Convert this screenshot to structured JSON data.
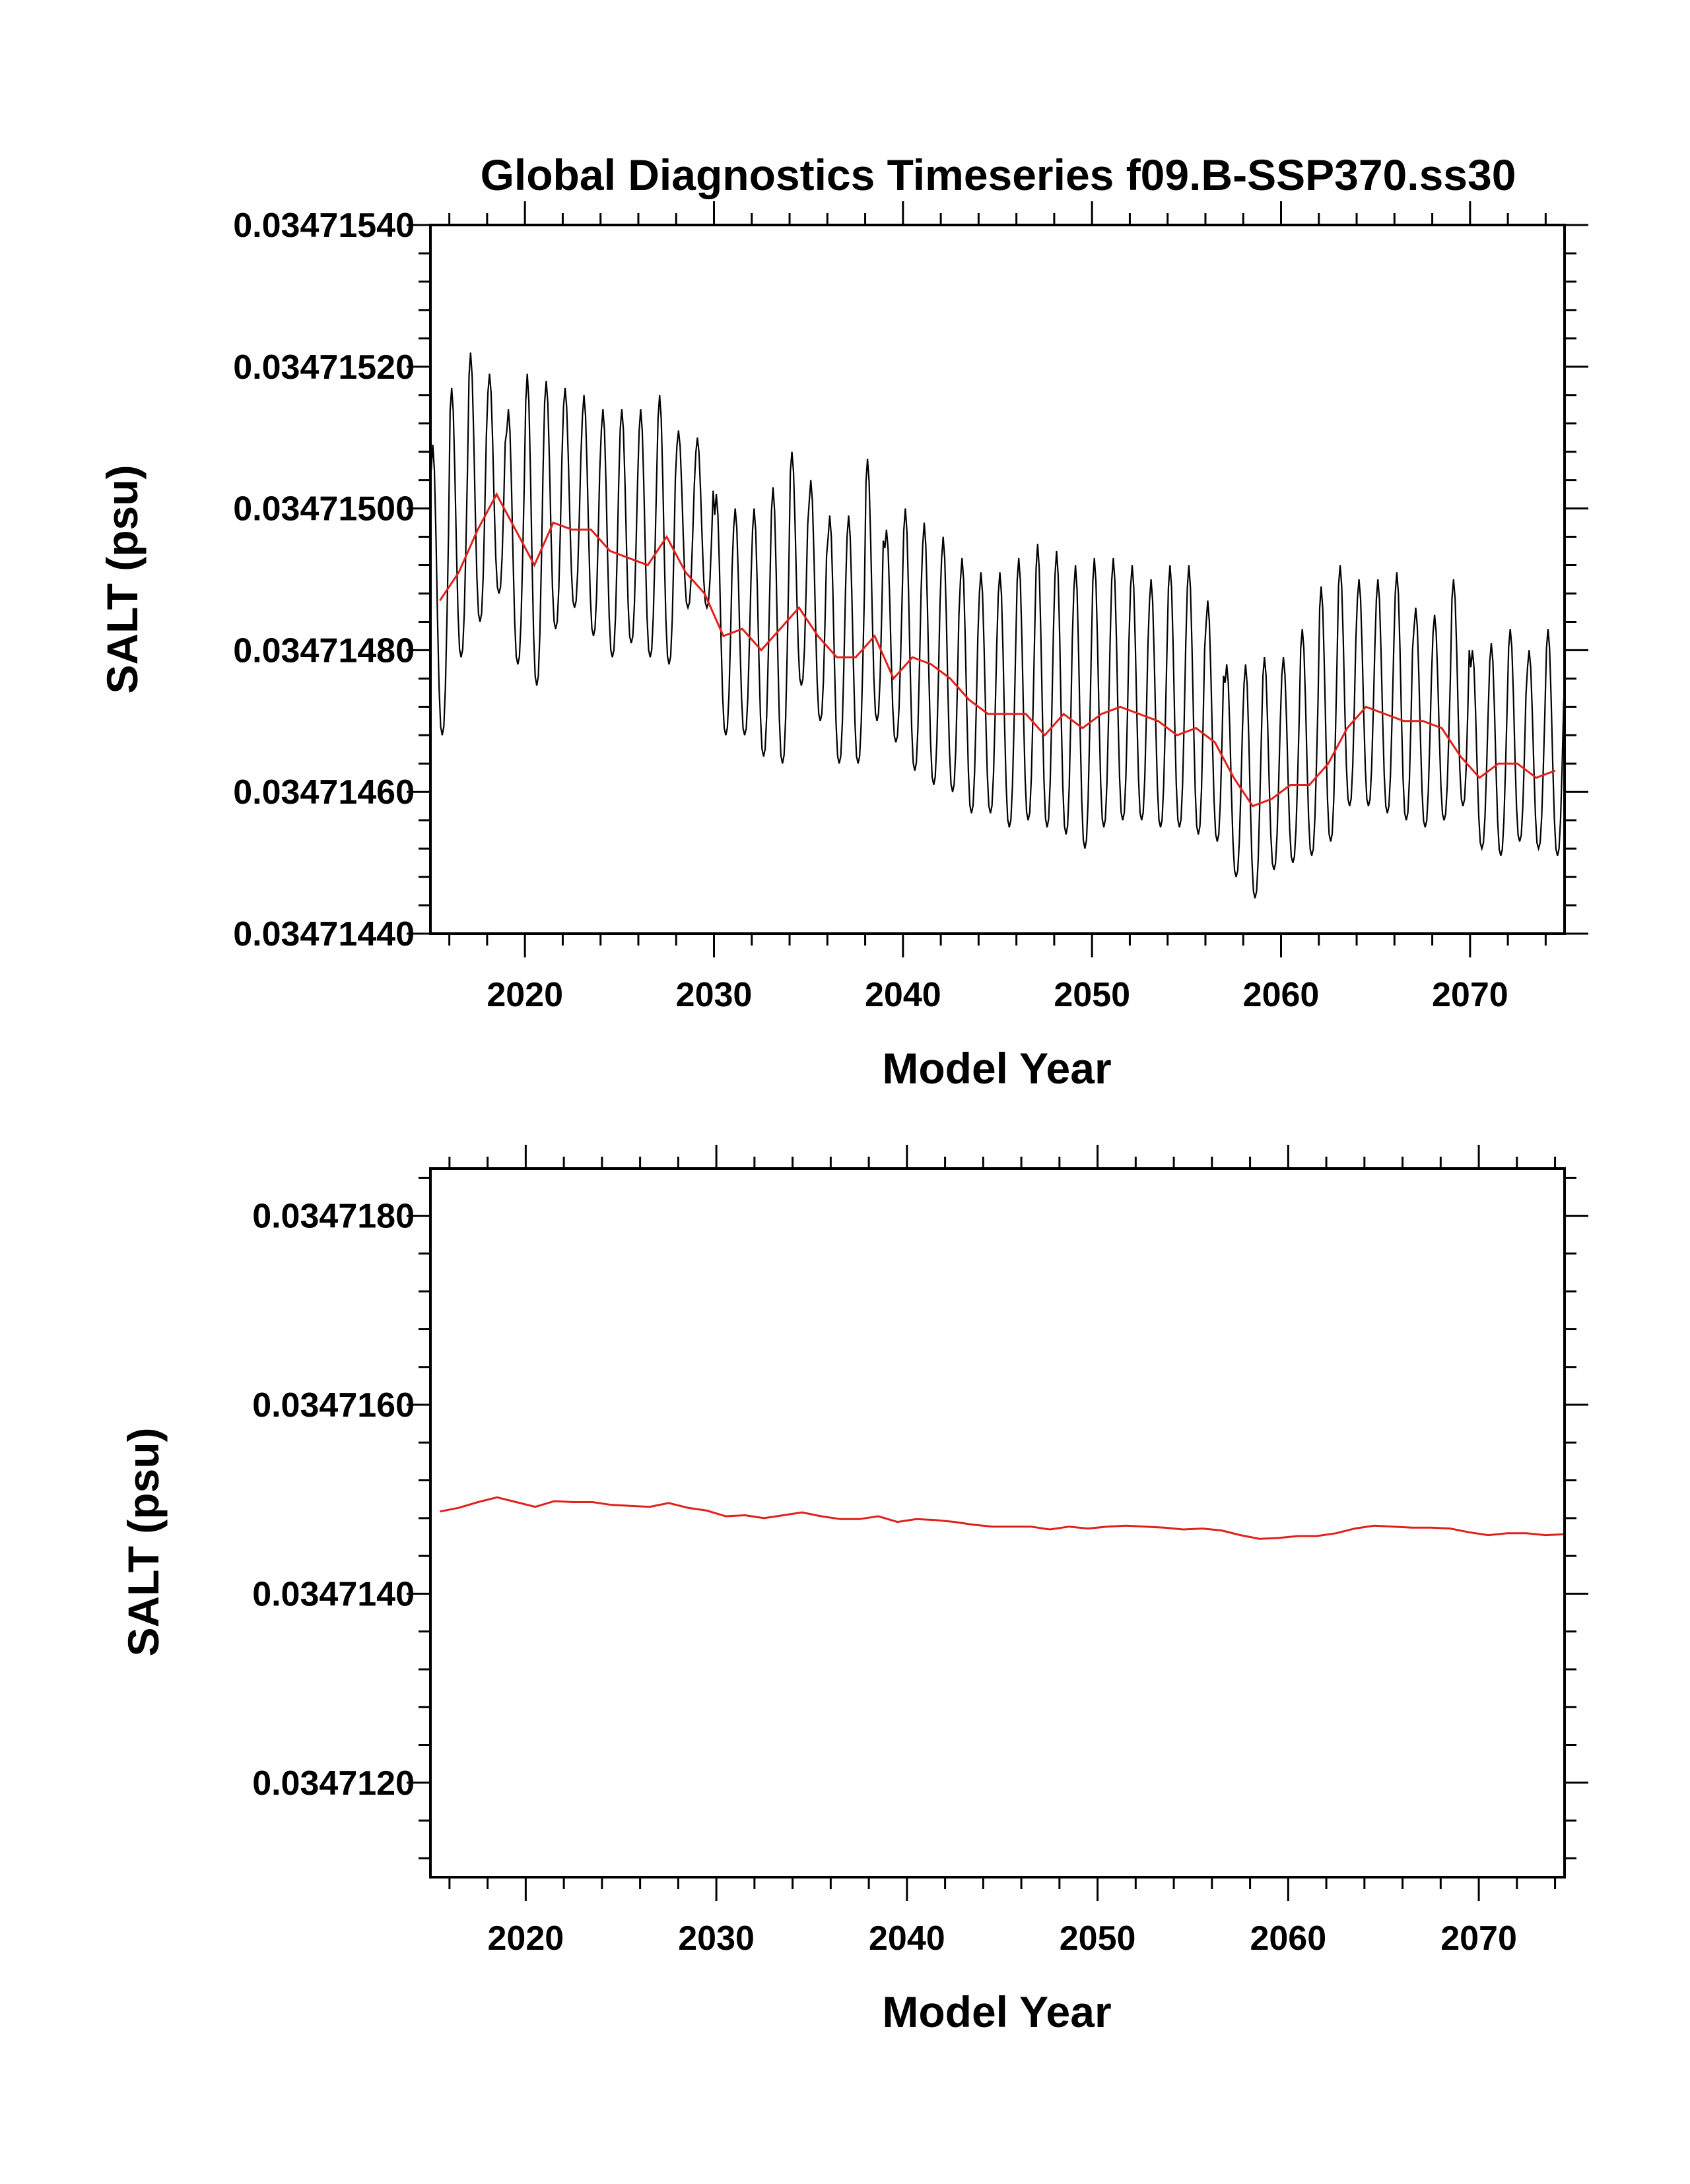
{
  "figure": {
    "title": "Global Diagnostics Timeseries f09.B-SSP370.ss30"
  },
  "colors": {
    "monthly": "#000000",
    "annual": "#e0201b",
    "axes": "#000000",
    "background": "#ffffff"
  },
  "chart_data": [
    {
      "type": "line",
      "xlabel": "Model Year",
      "ylabel": "SALT (psu)",
      "xlim": [
        2015,
        2075
      ],
      "ylim": [
        0.0347144,
        0.0347154
      ],
      "x_ticks": [
        "2020",
        "2030",
        "2040",
        "2050",
        "2060",
        "2070"
      ],
      "y_ticks": [
        "0.03471440",
        "0.03471460",
        "0.03471480",
        "0.03471500",
        "0.03471520",
        "0.03471540"
      ],
      "grid": false,
      "series": [
        {
          "name": "",
          "kind": "monthly",
          "x_start": 2015.0,
          "x_step_months": 1,
          "annual_peak": [
            0.03471509,
            0.03471517,
            0.03471522,
            0.03471519,
            0.03471514,
            0.03471519,
            0.03471518,
            0.03471517,
            0.03471516,
            0.03471514,
            0.03471514,
            0.03471514,
            0.03471516,
            0.03471511,
            0.0347151,
            0.03471502,
            0.034715,
            0.034715,
            0.03471503,
            0.03471508,
            0.03471504,
            0.03471499,
            0.03471499,
            0.03471507,
            0.03471497,
            0.034715,
            0.03471498,
            0.03471496,
            0.03471493,
            0.03471491,
            0.03471491,
            0.03471493,
            0.03471495,
            0.03471494,
            0.03471492,
            0.03471493,
            0.03471493,
            0.03471492,
            0.0347149,
            0.03471492,
            0.03471492,
            0.03471487,
            0.03471478,
            0.03471478,
            0.03471479,
            0.03471479,
            0.03471483,
            0.03471489,
            0.03471492,
            0.0347149,
            0.0347149,
            0.03471491,
            0.03471486,
            0.03471485,
            0.0347149,
            0.0347148,
            0.03471481,
            0.03471483,
            0.0347148,
            0.03471483
          ],
          "annual_trough": [
            0.03471468,
            0.03471479,
            0.03471484,
            0.03471488,
            0.03471478,
            0.03471475,
            0.03471483,
            0.03471486,
            0.03471482,
            0.03471479,
            0.03471481,
            0.03471479,
            0.03471478,
            0.03471486,
            0.03471486,
            0.03471468,
            0.03471468,
            0.03471465,
            0.03471464,
            0.03471475,
            0.0347147,
            0.03471464,
            0.03471464,
            0.0347147,
            0.03471467,
            0.03471463,
            0.03471461,
            0.0347146,
            0.03471457,
            0.03471457,
            0.03471455,
            0.03471456,
            0.03471455,
            0.03471454,
            0.03471452,
            0.03471455,
            0.03471456,
            0.03471456,
            0.03471455,
            0.03471455,
            0.03471454,
            0.03471453,
            0.03471448,
            0.03471445,
            0.03471449,
            0.0347145,
            0.03471451,
            0.03471453,
            0.03471458,
            0.03471458,
            0.03471457,
            0.03471456,
            0.03471455,
            0.03471456,
            0.03471458,
            0.03471452,
            0.03471451,
            0.03471453,
            0.03471452,
            0.03471451
          ]
        },
        {
          "name": "",
          "kind": "annual",
          "x": [
            2015.5,
            2016.5,
            2017.5,
            2018.5,
            2019.5,
            2020.5,
            2021.5,
            2022.5,
            2023.5,
            2024.5,
            2025.5,
            2026.5,
            2027.5,
            2028.5,
            2029.5,
            2030.5,
            2031.5,
            2032.5,
            2033.5,
            2034.5,
            2035.5,
            2036.5,
            2037.5,
            2038.5,
            2039.5,
            2040.5,
            2041.5,
            2042.5,
            2043.5,
            2044.5,
            2045.5,
            2046.5,
            2047.5,
            2048.5,
            2049.5,
            2050.5,
            2051.5,
            2052.5,
            2053.5,
            2054.5,
            2055.5,
            2056.5,
            2057.5,
            2058.5,
            2059.5,
            2060.5,
            2061.5,
            2062.5,
            2063.5,
            2064.5,
            2065.5,
            2066.5,
            2067.5,
            2068.5,
            2069.5,
            2070.5,
            2071.5,
            2072.5,
            2073.5,
            2074.5
          ],
          "y": [
            0.03471487,
            0.03471491,
            0.03471497,
            0.03471502,
            0.03471497,
            0.03471492,
            0.03471498,
            0.03471497,
            0.03471497,
            0.03471494,
            0.03471493,
            0.03471492,
            0.03471496,
            0.03471491,
            0.03471488,
            0.03471482,
            0.03471483,
            0.0347148,
            0.03471483,
            0.03471486,
            0.03471482,
            0.03471479,
            0.03471479,
            0.03471482,
            0.03471476,
            0.03471479,
            0.03471478,
            0.03471476,
            0.03471473,
            0.03471471,
            0.03471471,
            0.03471471,
            0.03471468,
            0.03471471,
            0.03471469,
            0.03471471,
            0.03471472,
            0.03471471,
            0.0347147,
            0.03471468,
            0.03471469,
            0.03471467,
            0.03471462,
            0.03471458,
            0.03471459,
            0.03471461,
            0.03471461,
            0.03471464,
            0.03471469,
            0.03471472,
            0.03471471,
            0.0347147,
            0.0347147,
            0.03471469,
            0.03471465,
            0.03471462,
            0.03471464,
            0.03471464,
            0.03471462,
            0.03471463
          ]
        }
      ]
    },
    {
      "type": "line",
      "xlabel": "Model Year",
      "ylabel": "SALT (psu)",
      "xlim": [
        2015,
        2074.5
      ],
      "ylim": [
        0.034711,
        0.0347185
      ],
      "x_ticks": [
        "2020",
        "2030",
        "2040",
        "2050",
        "2060",
        "2070"
      ],
      "y_ticks": [
        "0.0347120",
        "0.0347140",
        "0.0347160",
        "0.0347180"
      ],
      "grid": false,
      "series": [
        {
          "name": "",
          "kind": "annual",
          "x": [
            2015.5,
            2016.5,
            2017.5,
            2018.5,
            2019.5,
            2020.5,
            2021.5,
            2022.5,
            2023.5,
            2024.5,
            2025.5,
            2026.5,
            2027.5,
            2028.5,
            2029.5,
            2030.5,
            2031.5,
            2032.5,
            2033.5,
            2034.5,
            2035.5,
            2036.5,
            2037.5,
            2038.5,
            2039.5,
            2040.5,
            2041.5,
            2042.5,
            2043.5,
            2044.5,
            2045.5,
            2046.5,
            2047.5,
            2048.5,
            2049.5,
            2050.5,
            2051.5,
            2052.5,
            2053.5,
            2054.5,
            2055.5,
            2056.5,
            2057.5,
            2058.5,
            2059.5,
            2060.5,
            2061.5,
            2062.5,
            2063.5,
            2064.5,
            2065.5,
            2066.5,
            2067.5,
            2068.5,
            2069.5,
            2070.5,
            2071.5,
            2072.5,
            2073.5,
            2074.5
          ],
          "y": [
            0.03471487,
            0.03471491,
            0.03471497,
            0.03471502,
            0.03471497,
            0.03471492,
            0.03471498,
            0.03471497,
            0.03471497,
            0.03471494,
            0.03471493,
            0.03471492,
            0.03471496,
            0.03471491,
            0.03471488,
            0.03471482,
            0.03471483,
            0.0347148,
            0.03471483,
            0.03471486,
            0.03471482,
            0.03471479,
            0.03471479,
            0.03471482,
            0.03471476,
            0.03471479,
            0.03471478,
            0.03471476,
            0.03471473,
            0.03471471,
            0.03471471,
            0.03471471,
            0.03471468,
            0.03471471,
            0.03471469,
            0.03471471,
            0.03471472,
            0.03471471,
            0.0347147,
            0.03471468,
            0.03471469,
            0.03471467,
            0.03471462,
            0.03471458,
            0.03471459,
            0.03471461,
            0.03471461,
            0.03471464,
            0.03471469,
            0.03471472,
            0.03471471,
            0.0347147,
            0.0347147,
            0.03471469,
            0.03471465,
            0.03471462,
            0.03471464,
            0.03471464,
            0.03471462,
            0.03471463
          ]
        }
      ]
    }
  ]
}
